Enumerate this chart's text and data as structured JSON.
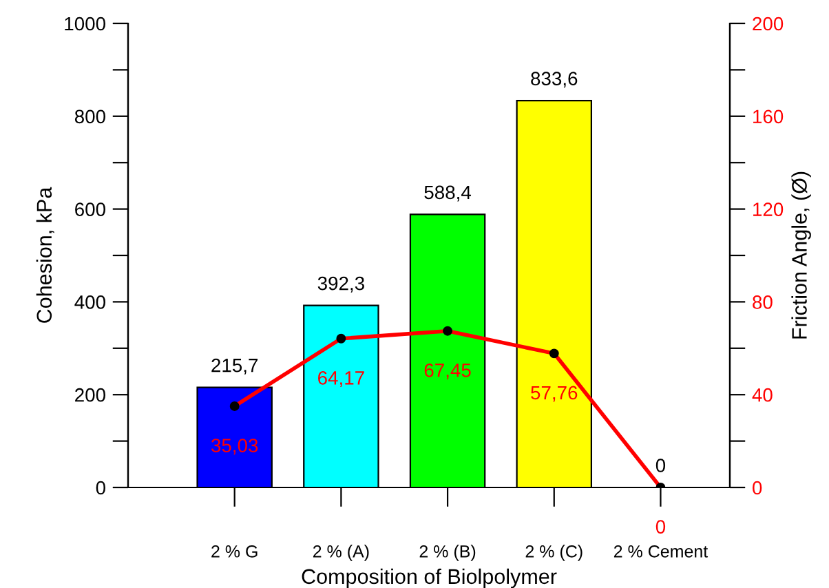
{
  "chart_data": {
    "type": "bar",
    "xlabel": "Composition of Biolpolymer",
    "ylabel": "Cohesion, kPa",
    "y2label": "Friction Angle, (Ø)",
    "categories": [
      "2 % G",
      "2 % (A)",
      "2 % (B)",
      "2 % (C)",
      "2 % Cement"
    ],
    "series": [
      {
        "colors": [
          "#0000ff",
          "#00ffff",
          "#00ff00",
          "#ffff00",
          "#000000"
        ],
        "values": [
          215.7,
          392.3,
          588.4,
          833.6,
          0
        ],
        "value_labels": [
          "215,7",
          "392,3",
          "588,4",
          "833,6",
          "0"
        ]
      },
      {
        "type": "line",
        "axis": "y2",
        "color": "#ff0000",
        "marker": "circle",
        "line_style": "solid",
        "values": [
          35.03,
          64.17,
          67.45,
          57.76,
          0
        ],
        "value_labels": [
          "35,03",
          "64,17",
          "67,45",
          "57,76",
          "0"
        ]
      }
    ],
    "ylim": [
      0,
      1000
    ],
    "yticks": [
      0,
      {
        "value": 100,
        "label": null
      },
      200,
      {
        "value": 300,
        "label": null
      },
      400,
      {
        "value": 500,
        "label": null
      },
      600,
      {
        "value": 700,
        "label": null
      },
      800,
      {
        "value": 900,
        "label": null
      },
      1000
    ],
    "y2lim": [
      0,
      200
    ],
    "y2ticks": [
      0,
      {
        "value": 20,
        "label": null
      },
      40,
      {
        "value": 60,
        "label": null
      },
      80,
      {
        "value": 100,
        "label": null
      },
      120,
      {
        "value": 140,
        "label": null
      },
      160,
      {
        "value": 180,
        "label": null
      },
      200
    ],
    "grid": false,
    "legend": false
  }
}
